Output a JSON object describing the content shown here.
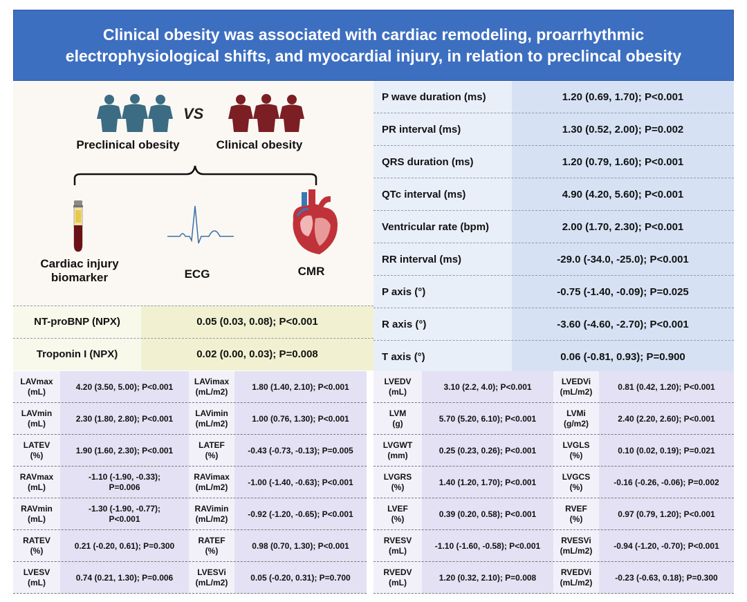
{
  "banner": {
    "line1": "Clinical obesity was associated with cardiac remodeling, proarrhythmic",
    "line2": "electrophysiological shifts, and myocardial injury, in relation to preclincal obesity"
  },
  "illustration": {
    "preclinical_label": "Preclinical obesity",
    "clinical_label": "Clinical obesity",
    "vs_label": "VS",
    "biomarker_label_line1": "Cardiac injury",
    "biomarker_label_line2": "biomarker",
    "ecg_label": "ECG",
    "cmr_label": "CMR",
    "colors": {
      "preclinical": "#3b6c83",
      "clinical": "#7b1f24"
    }
  },
  "ecg_table": [
    {
      "label": "P wave duration (ms)",
      "value": "1.20 (0.69, 1.70); P<0.001"
    },
    {
      "label": "PR interval (ms)",
      "value": "1.30 (0.52, 2.00); P=0.002"
    },
    {
      "label": "QRS duration (ms)",
      "value": "1.20 (0.79, 1.60); P<0.001"
    },
    {
      "label": "QTc interval (ms)",
      "value": "4.90 (4.20, 5.60); P<0.001"
    },
    {
      "label": "Ventricular rate (bpm)",
      "value": "2.00 (1.70, 2.30); P<0.001"
    },
    {
      "label": "RR interval (ms)",
      "value": "-29.0 (-34.0, -25.0); P<0.001"
    },
    {
      "label": "P axis (°)",
      "value": "-0.75 (-1.40, -0.09); P=0.025"
    },
    {
      "label": "R axis (°)",
      "value": "-3.60 (-4.60, -2.70); P<0.001"
    },
    {
      "label": "T axis (°)",
      "value": "0.06 (-0.81, 0.93); P=0.900"
    }
  ],
  "biomarker_table": [
    {
      "label": "NT-proBNP (NPX)",
      "value": "0.05 (0.03, 0.08); P<0.001"
    },
    {
      "label": "Troponin I (NPX)",
      "value": "0.02 (0.00, 0.03); P=0.008"
    }
  ],
  "cmr_left": [
    [
      {
        "l1": "LAVmax",
        "l2": "(mL)",
        "v1": "4.20 (3.50, 5.00); P<0.001",
        "v2": ""
      },
      {
        "l1": "LAVimax",
        "l2": "(mL/m2)",
        "v1": "1.80 (1.40, 2.10); P<0.001",
        "v2": ""
      }
    ],
    [
      {
        "l1": "LAVmin",
        "l2": "(mL)",
        "v1": "2.30 (1.80, 2.80); P<0.001",
        "v2": ""
      },
      {
        "l1": "LAVimin",
        "l2": "(mL/m2)",
        "v1": "1.00 (0.76, 1.30); P<0.001",
        "v2": ""
      }
    ],
    [
      {
        "l1": "LATEV",
        "l2": "(%)",
        "v1": "1.90 (1.60, 2.30); P<0.001",
        "v2": ""
      },
      {
        "l1": "LATEF",
        "l2": "(%)",
        "v1": "-0.43 (-0.73, -0.13); P=0.005",
        "v2": ""
      }
    ],
    [
      {
        "l1": "RAVmax",
        "l2": "(mL)",
        "v1": "-1.10 (-1.90, -0.33);",
        "v2": "P=0.006"
      },
      {
        "l1": "RAVimax",
        "l2": "(mL/m2)",
        "v1": "-1.00 (-1.40, -0.63); P<0.001",
        "v2": ""
      }
    ],
    [
      {
        "l1": "RAVmin",
        "l2": "(mL)",
        "v1": "-1.30 (-1.90, -0.77);",
        "v2": "P<0.001"
      },
      {
        "l1": "RAVimin",
        "l2": "(mL/m2)",
        "v1": "-0.92 (-1.20, -0.65); P<0.001",
        "v2": ""
      }
    ],
    [
      {
        "l1": "RATEV",
        "l2": "(%)",
        "v1": "0.21 (-0.20, 0.61); P=0.300",
        "v2": ""
      },
      {
        "l1": "RATEF",
        "l2": "(%)",
        "v1": "0.98 (0.70, 1.30); P<0.001",
        "v2": ""
      }
    ],
    [
      {
        "l1": "LVESV",
        "l2": "(mL)",
        "v1": "0.74 (0.21, 1.30); P=0.006",
        "v2": ""
      },
      {
        "l1": "LVESVi",
        "l2": "(mL/m2)",
        "v1": "0.05 (-0.20, 0.31); P=0.700",
        "v2": ""
      }
    ]
  ],
  "cmr_right": [
    [
      {
        "l1": "LVEDV",
        "l2": "(mL)",
        "v1": "3.10 (2.2, 4.0); P<0.001",
        "v2": ""
      },
      {
        "l1": "LVEDVi",
        "l2": "(mL/m2)",
        "v1": "0.81 (0.42, 1.20); P<0.001",
        "v2": ""
      }
    ],
    [
      {
        "l1": "LVM",
        "l2": "(g)",
        "v1": "5.70 (5.20, 6.10); P<0.001",
        "v2": ""
      },
      {
        "l1": "LVMi",
        "l2": "(g/m2)",
        "v1": "2.40 (2.20, 2.60); P<0.001",
        "v2": ""
      }
    ],
    [
      {
        "l1": "LVGWT",
        "l2": "(mm)",
        "v1": "0.25 (0.23, 0.26); P<0.001",
        "v2": ""
      },
      {
        "l1": "LVGLS",
        "l2": "(%)",
        "v1": "0.10 (0.02, 0.19); P=0.021",
        "v2": ""
      }
    ],
    [
      {
        "l1": "LVGRS",
        "l2": "(%)",
        "v1": "1.40 (1.20, 1.70); P<0.001",
        "v2": ""
      },
      {
        "l1": "LVGCS",
        "l2": "(%)",
        "v1": "-0.16 (-0.26, -0.06); P=0.002",
        "v2": ""
      }
    ],
    [
      {
        "l1": "LVEF",
        "l2": "(%)",
        "v1": "0.39 (0.20, 0.58); P<0.001",
        "v2": ""
      },
      {
        "l1": "RVEF",
        "l2": "(%)",
        "v1": "0.97 (0.79, 1.20); P<0.001",
        "v2": ""
      }
    ],
    [
      {
        "l1": "RVESV",
        "l2": "(mL)",
        "v1": "-1.10 (-1.60, -0.58); P<0.001",
        "v2": ""
      },
      {
        "l1": "RVESVi",
        "l2": "(mL/m2)",
        "v1": "-0.94 (-1.20, -0.70); P<0.001",
        "v2": ""
      }
    ],
    [
      {
        "l1": "RVEDV",
        "l2": "(mL)",
        "v1": "1.20 (0.32, 2.10); P=0.008",
        "v2": ""
      },
      {
        "l1": "RVEDVi",
        "l2": "(mL/m2)",
        "v1": "-0.23 (-0.63, 0.18); P=0.300",
        "v2": ""
      }
    ]
  ]
}
